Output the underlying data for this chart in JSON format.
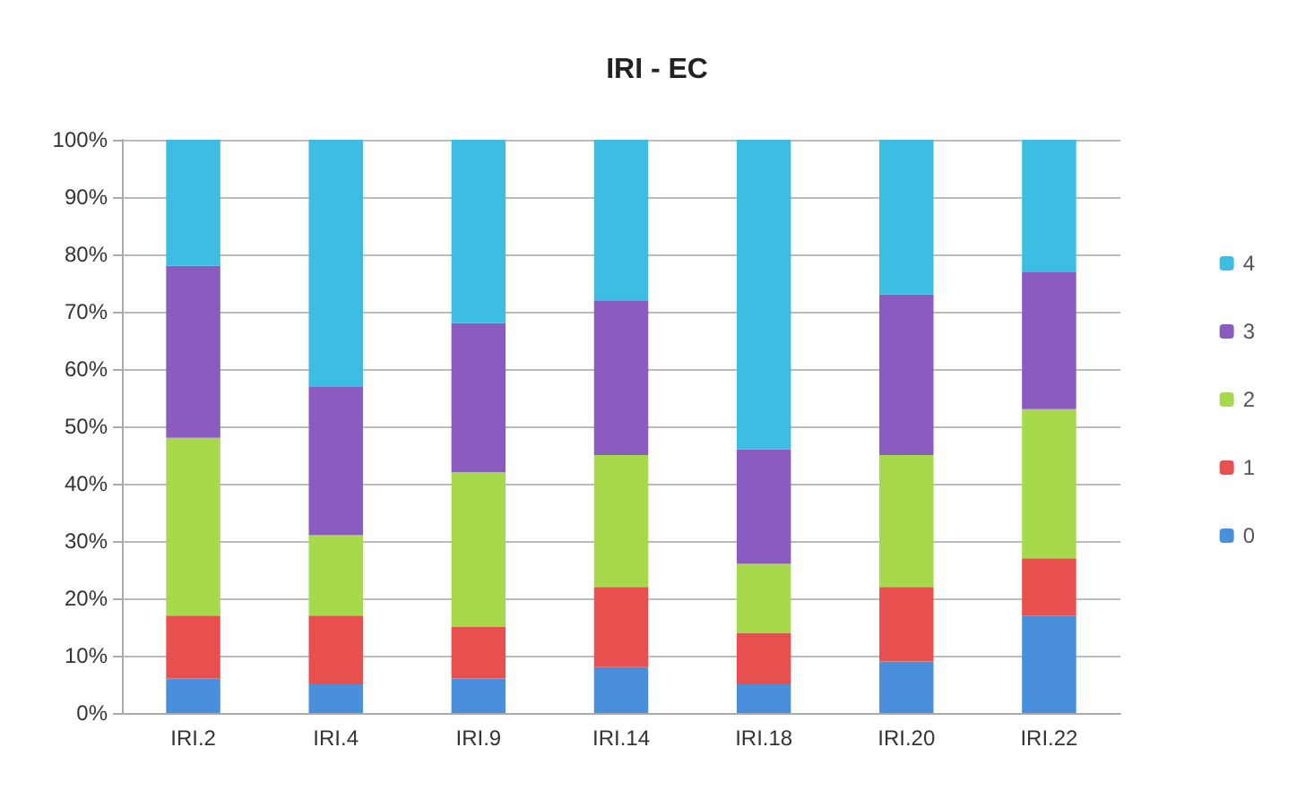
{
  "chart_data": {
    "type": "bar",
    "title": "IRI - EC",
    "categories": [
      "IRI.2",
      "IRI.4",
      "IRI.9",
      "IRI.14",
      "IRI.18",
      "IRI.20",
      "IRI.22"
    ],
    "stacked": true,
    "series": [
      {
        "name": "0",
        "color": "#4a8fdb",
        "values": [
          6,
          5,
          6,
          8,
          5,
          9,
          17
        ]
      },
      {
        "name": "1",
        "color": "#e8504f",
        "values": [
          11,
          12,
          9,
          14,
          9,
          13,
          10
        ]
      },
      {
        "name": "2",
        "color": "#a6d94b",
        "values": [
          31,
          14,
          27,
          23,
          12,
          23,
          26
        ]
      },
      {
        "name": "3",
        "color": "#8a5cc0",
        "values": [
          30,
          26,
          26,
          27,
          20,
          28,
          24
        ]
      },
      {
        "name": "4",
        "color": "#3dbde2",
        "values": [
          22,
          43,
          32,
          28,
          54,
          27,
          23
        ]
      }
    ],
    "ylim": [
      0,
      100
    ],
    "yticks": [
      {
        "value": 0,
        "label": "0%"
      },
      {
        "value": 10,
        "label": "10%"
      },
      {
        "value": 20,
        "label": "20%"
      },
      {
        "value": 30,
        "label": "30%"
      },
      {
        "value": 40,
        "label": "40%"
      },
      {
        "value": 50,
        "label": "50%"
      },
      {
        "value": 60,
        "label": "60%"
      },
      {
        "value": 70,
        "label": "70%"
      },
      {
        "value": 80,
        "label": "80%"
      },
      {
        "value": 90,
        "label": "90%"
      },
      {
        "value": 100,
        "label": "100%"
      }
    ],
    "grid": "y",
    "legend": "right"
  }
}
